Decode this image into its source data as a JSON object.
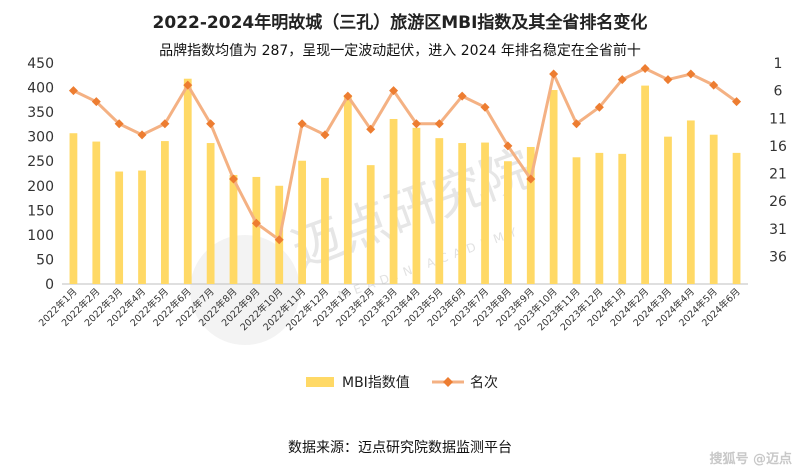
{
  "header": {
    "title": "2022-2024年明故城（三孔）旅游区MBI指数及其全省排名变化",
    "subtitle": "品牌指数均值为 287，呈现一定波动起伏，进入 2024 年排名稳定在全省前十"
  },
  "footer": {
    "source": "数据来源：迈点研究院数据监测平台",
    "brand": "搜狐号 @迈点"
  },
  "watermark": {
    "text": "迈点研究院",
    "subtext": "MEADIN ACADEMY"
  },
  "colors": {
    "bar": "#FFD966",
    "line": "#F4B183",
    "marker": "#ED7D31"
  },
  "chart_data": {
    "type": "bar",
    "categories": [
      "2022年1月",
      "2022年2月",
      "2022年3月",
      "2022年4月",
      "2022年5月",
      "2022年6月",
      "2022年7月",
      "2022年8月",
      "2022年9月",
      "2022年10月",
      "2022年11月",
      "2022年12月",
      "2023年1月",
      "2023年2月",
      "2023年3月",
      "2023年4月",
      "2023年5月",
      "2023年6月",
      "2023年7月",
      "2023年8月",
      "2023年9月",
      "2023年10月",
      "2023年11月",
      "2023年12月",
      "2024年1月",
      "2024年2月",
      "2024年3月",
      "2024年4月",
      "2024年5月",
      "2024年6月"
    ],
    "series": [
      {
        "name": "MBI指数值",
        "type": "bar",
        "axis": "left",
        "values": [
          307,
          290,
          229,
          231,
          291,
          418,
          287,
          222,
          218,
          200,
          251,
          216,
          385,
          242,
          336,
          318,
          297,
          287,
          288,
          250,
          279,
          395,
          258,
          267,
          265,
          404,
          300,
          333,
          304,
          267
        ]
      },
      {
        "name": "名次",
        "type": "line",
        "axis": "right",
        "values": [
          6,
          8,
          12,
          14,
          12,
          5,
          12,
          22,
          30,
          33,
          12,
          14,
          7,
          13,
          6,
          12,
          12,
          7,
          9,
          16,
          22,
          3,
          12,
          9,
          4,
          2,
          4,
          3,
          5,
          8
        ]
      }
    ],
    "y_left": {
      "min": 0,
      "max": 450,
      "ticks": [
        0,
        50,
        100,
        150,
        200,
        250,
        300,
        350,
        400,
        450
      ]
    },
    "y_right": {
      "min": 1,
      "max": 41,
      "inverted": true,
      "ticks": [
        1,
        6,
        11,
        16,
        21,
        26,
        31,
        36
      ]
    },
    "grid": false,
    "legend": "bottom"
  }
}
